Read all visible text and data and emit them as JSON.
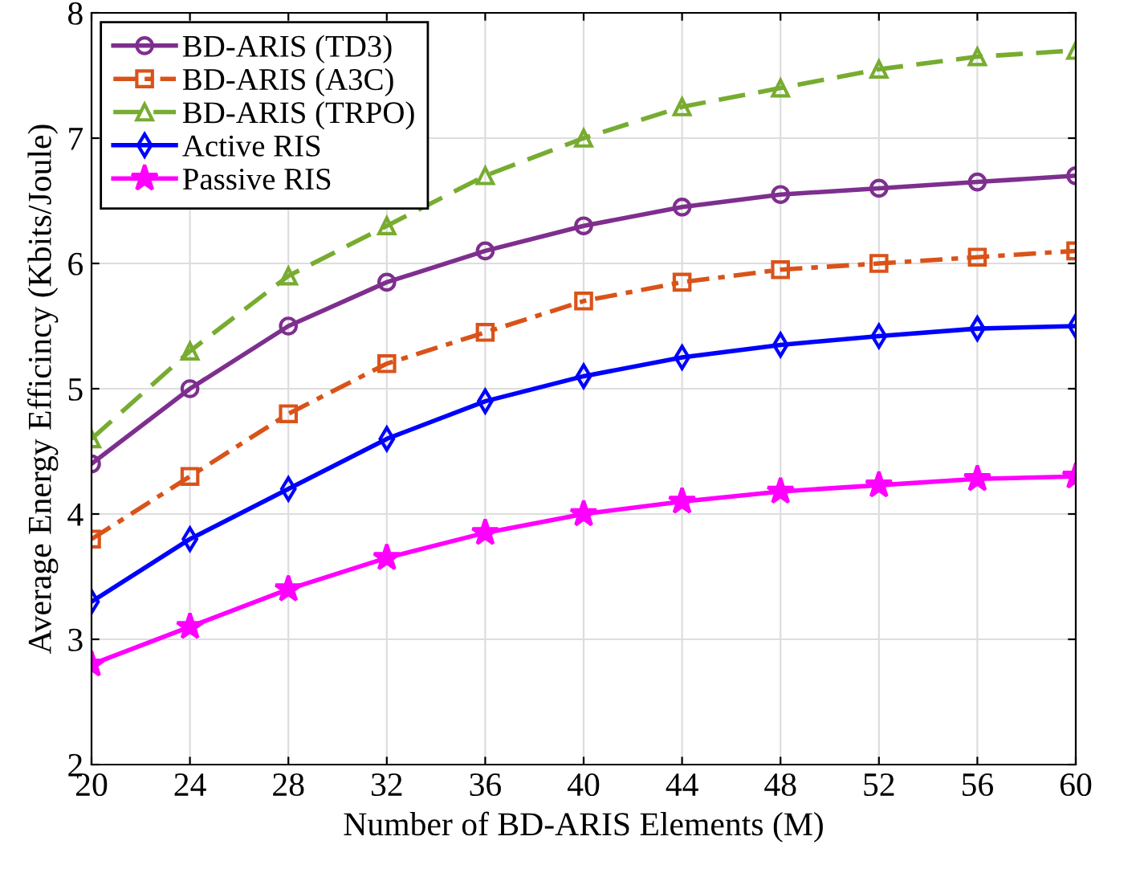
{
  "chart_data": {
    "type": "line",
    "xlabel": "Number of BD-ARIS Elements (M)",
    "ylabel": "Average Energy Efficincy (Kbits/Joule)",
    "x": [
      20,
      24,
      28,
      32,
      36,
      40,
      44,
      48,
      52,
      56,
      60
    ],
    "xlim": [
      20,
      60
    ],
    "xticks": [
      20,
      24,
      28,
      32,
      36,
      40,
      44,
      48,
      52,
      56,
      60
    ],
    "ylim": [
      2,
      8
    ],
    "yticks": [
      2,
      3,
      4,
      5,
      6,
      7,
      8
    ],
    "grid": true,
    "legend": "top left",
    "series": [
      {
        "name": "BD-ARIS (TD3)",
        "color": "#7e2f8e",
        "marker": "circle",
        "line_style": "solid",
        "values": [
          4.4,
          5.0,
          5.5,
          5.85,
          6.1,
          6.3,
          6.45,
          6.55,
          6.6,
          6.65,
          6.7
        ]
      },
      {
        "name": "BD-ARIS (A3C)",
        "color": "#d95319",
        "marker": "square",
        "line_style": "dashdot",
        "values": [
          3.8,
          4.3,
          4.8,
          5.2,
          5.45,
          5.7,
          5.85,
          5.95,
          6.0,
          6.05,
          6.1
        ]
      },
      {
        "name": "BD-ARIS (TRPO)",
        "color": "#77ac30",
        "marker": "triangle",
        "line_style": "dashed",
        "values": [
          4.6,
          5.3,
          5.9,
          6.3,
          6.7,
          7.0,
          7.25,
          7.4,
          7.55,
          7.65,
          7.7
        ]
      },
      {
        "name": "Active RIS",
        "color": "#0000ff",
        "marker": "diamond",
        "line_style": "solid",
        "values": [
          3.3,
          3.8,
          4.2,
          4.6,
          4.9,
          5.1,
          5.25,
          5.35,
          5.42,
          5.48,
          5.5
        ]
      },
      {
        "name": "Passive RIS",
        "color": "#ff00ff",
        "marker": "star",
        "line_style": "solid",
        "values": [
          2.8,
          3.1,
          3.4,
          3.65,
          3.85,
          4.0,
          4.1,
          4.18,
          4.23,
          4.28,
          4.3
        ]
      }
    ]
  }
}
